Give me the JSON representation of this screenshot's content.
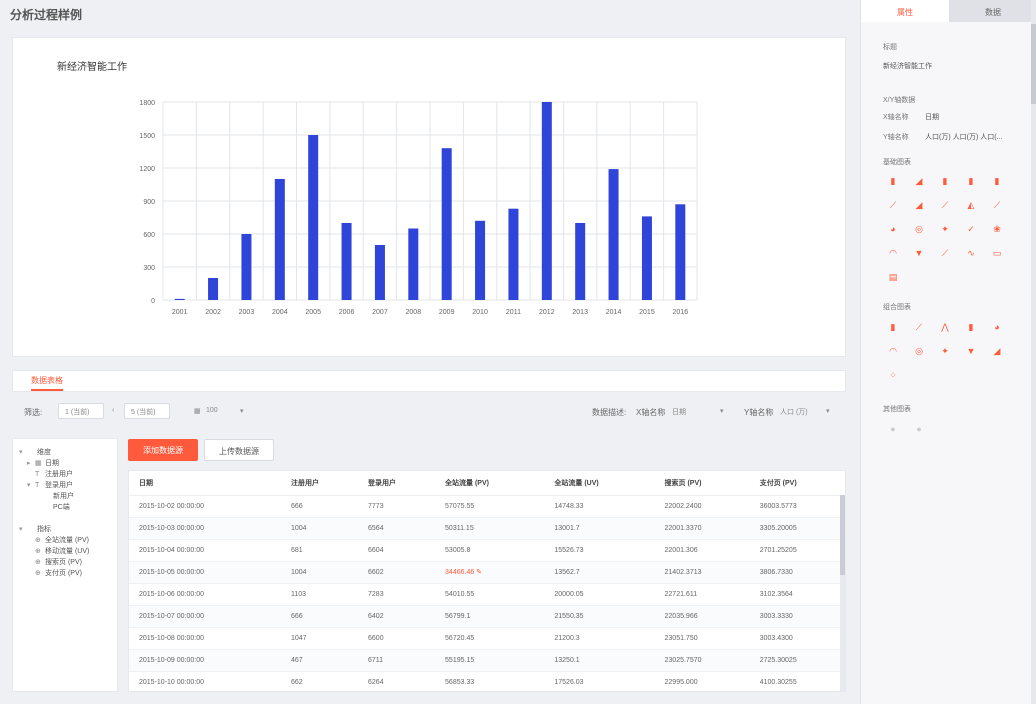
{
  "page": {
    "title": "分析过程样例"
  },
  "chart_data": {
    "type": "bar",
    "title": "新经济智能工作",
    "categories": [
      "2001",
      "2002",
      "2003",
      "2004",
      "2005",
      "2006",
      "2007",
      "2008",
      "2009",
      "2010",
      "2011",
      "2012",
      "2013",
      "2014",
      "2015",
      "2016"
    ],
    "values": [
      10,
      200,
      600,
      1100,
      1500,
      700,
      500,
      650,
      1380,
      720,
      830,
      1800,
      700,
      1190,
      760,
      870
    ],
    "yticks": [
      "0",
      "300",
      "600",
      "900",
      "1200",
      "1500",
      "1800"
    ],
    "ylim": [
      0,
      1800
    ],
    "color": "#2f44d8",
    "grid": true
  },
  "tabs": {
    "active": "数据表格"
  },
  "filter": {
    "label": "筛选:",
    "from": "1 (当前)",
    "to": "5 (当前)",
    "count": "100",
    "meta_label": "数据描述:",
    "x_label": "X轴名称",
    "x_value": "日期",
    "y_label": "Y轴名称",
    "y_value": "人口 (万)"
  },
  "buttons": {
    "primary": "添加数据源",
    "secondary": "上传数据源"
  },
  "tree": [
    {
      "caret": "▾",
      "icon": "",
      "label": "维度",
      "indent": 0
    },
    {
      "caret": "▸",
      "icon": "▦",
      "label": "日期",
      "indent": 1
    },
    {
      "caret": "",
      "icon": "T",
      "label": "注册用户",
      "indent": 1
    },
    {
      "caret": "▾",
      "icon": "T",
      "label": "登录用户",
      "indent": 1
    },
    {
      "caret": "",
      "icon": "",
      "label": "新用户",
      "indent": 2
    },
    {
      "caret": "",
      "icon": "",
      "label": "PC端",
      "indent": 2
    },
    {
      "caret": "",
      "icon": "",
      "label": "",
      "indent": 0
    },
    {
      "caret": "▾",
      "icon": "",
      "label": "指标",
      "indent": 0
    },
    {
      "caret": "",
      "icon": "⊕",
      "label": "全站流量 (PV)",
      "indent": 1
    },
    {
      "caret": "",
      "icon": "⊕",
      "label": "移动流量 (UV)",
      "indent": 1
    },
    {
      "caret": "",
      "icon": "⊕",
      "label": "搜索页 (PV)",
      "indent": 1
    },
    {
      "caret": "",
      "icon": "⊕",
      "label": "支付页 (PV)",
      "indent": 1
    }
  ],
  "table": {
    "headers": [
      "日期",
      "注册用户",
      "登录用户",
      "全站流量 (PV)",
      "全站流量 (UV)",
      "搜索页 (PV)",
      "支付页 (PV)"
    ],
    "rows": [
      [
        "2015-10-02 00:00:00",
        "666",
        "7773",
        "57075.55",
        "14748.33",
        "22002.2400",
        "36003.5773"
      ],
      [
        "2015-10-03 00:00:00",
        "1004",
        "6564",
        "50311.15",
        "13001.7",
        "22001.3370",
        "3305.20005"
      ],
      [
        "2015-10-04 00:00:00",
        "681",
        "6604",
        "53005.8",
        "15526.73",
        "22001.306",
        "2701.25205"
      ],
      [
        "2015-10-05 00:00:00",
        "1004",
        "6602",
        "34466.46",
        "13562.7",
        "21402.3713",
        "3806.7330"
      ],
      [
        "2015-10-06 00:00:00",
        "1103",
        "7283",
        "54010.55",
        "20000.05",
        "22721.611",
        "3102.3564"
      ],
      [
        "2015-10-07 00:00:00",
        "666",
        "6402",
        "56799.1",
        "21550.35",
        "22035.966",
        "3003.3330"
      ],
      [
        "2015-10-08 00:00:00",
        "1047",
        "6600",
        "56720.45",
        "21200.3",
        "23051.750",
        "3003.4300"
      ],
      [
        "2015-10-09 00:00:00",
        "467",
        "6711",
        "55195.15",
        "13250.1",
        "23025.7570",
        "2725.30025"
      ],
      [
        "2015-10-10 00:00:00",
        "662",
        "6264",
        "56853.33",
        "17526.03",
        "22995.000",
        "4100.30255"
      ]
    ],
    "editing_cell": {
      "row": 3,
      "col": 3
    }
  },
  "right_panel": {
    "tabs": [
      "属性",
      "数据"
    ],
    "title_label": "标题",
    "title_value": "新经济智能工作",
    "axis_header": "X/Y轴数据",
    "x_axis_label": "X轴名称",
    "x_axis_value": "日期",
    "y_axis_label": "Y轴名称",
    "y_axis_values": "人口(万) 人口(万) 人口(...",
    "basic_charts_header": "基础图表",
    "basic_icons": [
      "bar-chart",
      "area-chart",
      "column-chart",
      "bar-horizontal",
      "grouped-bar",
      "line-chart",
      "line-area",
      "step-line",
      "mountain-chart",
      "trend-line",
      "pie-chart",
      "donut-chart",
      "radar-chart",
      "check-chart",
      "rose-chart",
      "gauge-chart",
      "funnel-chart",
      "timeline-chart",
      "wave-chart",
      "box-chart",
      "table-chart"
    ],
    "combo_header": "组合图表",
    "combo_icons": [
      "combo-bar",
      "combo-line",
      "combo-mixed",
      "combo-column",
      "combo-pie",
      "combo-gauge",
      "combo-donut",
      "combo-radar",
      "combo-funnel",
      "combo-area",
      "combo-scatter"
    ],
    "other_header": "其他图表",
    "other_icons": [
      "map-chart",
      "flow-chart"
    ]
  }
}
